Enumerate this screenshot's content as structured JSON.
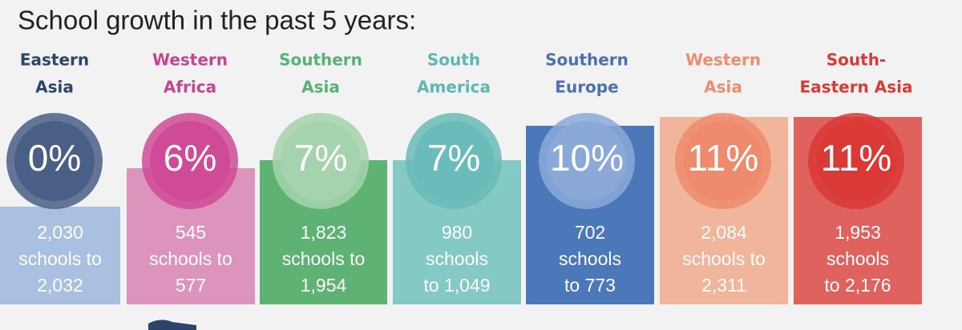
{
  "title": "School growth in the past 5 years:",
  "regions": [
    {
      "name": [
        "Eastern",
        "Asia"
      ],
      "growth": "0%",
      "detail": [
        "2,030",
        "schools to",
        "2,032"
      ]
    },
    {
      "name": [
        "Western",
        "Africa"
      ],
      "growth": "6%",
      "detail": [
        "545",
        "schools to",
        "577"
      ]
    },
    {
      "name": [
        "Southern",
        "Asia"
      ],
      "growth": "7%",
      "detail": [
        "1,823",
        "schools to",
        "1,954"
      ]
    },
    {
      "name": [
        "South",
        "America"
      ],
      "growth": "7%",
      "detail": [
        "980",
        "schools",
        "to 1,049"
      ]
    },
    {
      "name": [
        "Southern",
        "Europe"
      ],
      "growth": "10%",
      "detail": [
        "702",
        "schools",
        "to 773"
      ]
    },
    {
      "name": [
        "Western",
        "Asia"
      ],
      "growth": "11%",
      "detail": [
        "2,084",
        "schools to",
        "2,311"
      ]
    },
    {
      "name": [
        "South-",
        "Eastern Asia"
      ],
      "growth": "11%",
      "detail": [
        "1,953",
        "schools",
        "to 2,176"
      ]
    }
  ]
}
